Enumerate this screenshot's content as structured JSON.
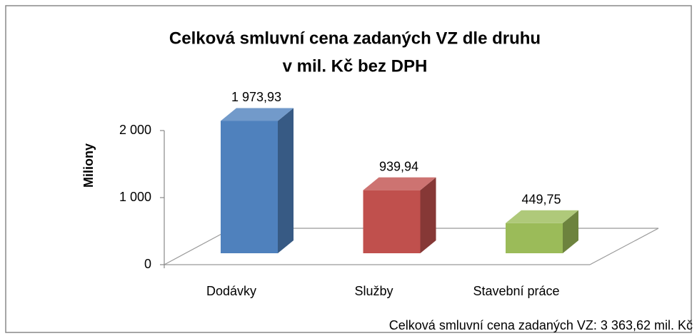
{
  "chart_data": {
    "type": "bar3d",
    "title": [
      "Celková smluvní cena zadaných VZ dle druhu",
      "v mil. Kč bez DPH"
    ],
    "y_label": "Miliony",
    "categories": [
      "Dodávky",
      "Služby",
      "Stavební práce"
    ],
    "values": [
      1973.93,
      939.94,
      449.75
    ],
    "value_labels": [
      "1 973,93",
      "939,94",
      "449,75"
    ],
    "colors": [
      "#4f81bd",
      "#c0504d",
      "#9bbb59"
    ],
    "ylim": [
      0,
      2000
    ],
    "yticks": [
      0,
      {
        "value": 1000,
        "label": "1 000"
      },
      {
        "value": 2000,
        "label": "2 000"
      }
    ],
    "note": "Celková smluvní cena zadaných VZ: 3 363,62 mil. Kč"
  }
}
